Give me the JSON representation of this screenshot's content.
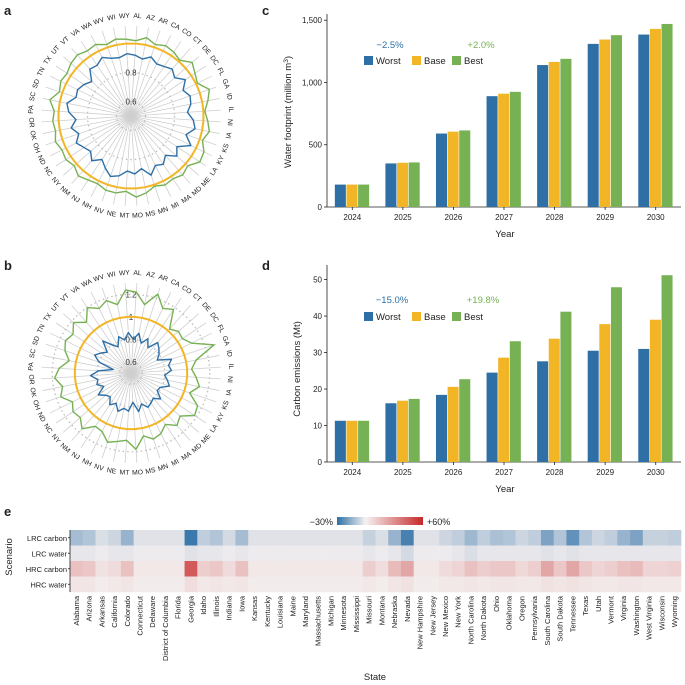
{
  "panel_labels": {
    "a": "a",
    "b": "b",
    "c": "c",
    "d": "d",
    "e": "e"
  },
  "colors": {
    "worst": "#2e6fa6",
    "base": "#f2b526",
    "best": "#76b153",
    "neg": "#2e6fa6",
    "pos": "#c6282a",
    "neutral": "#f4efef",
    "grid": "#c8c8c8"
  },
  "chart_data": [
    {
      "id": "a",
      "type": "radar",
      "states": [
        "AL",
        "AZ",
        "AR",
        "CA",
        "CO",
        "CT",
        "DE",
        "DC",
        "FL",
        "GA",
        "ID",
        "IL",
        "IN",
        "IA",
        "KS",
        "KY",
        "LA",
        "ME",
        "MD",
        "MA",
        "MI",
        "MN",
        "MS",
        "MO",
        "MT",
        "NE",
        "NV",
        "NH",
        "NJ",
        "NM",
        "NY",
        "NC",
        "ND",
        "OH",
        "OK",
        "OR",
        "PA",
        "SC",
        "SD",
        "TN",
        "TX",
        "UT",
        "VT",
        "VA",
        "WA",
        "WV",
        "WI",
        "WY"
      ],
      "ticks": [
        "0.6",
        "0.8"
      ],
      "rmin": 0.5,
      "rmax": 1.12,
      "series": [
        {
          "name": "Worst",
          "values": [
            0.92,
            0.9,
            0.93,
            0.9,
            0.91,
            0.93,
            0.9,
            0.95,
            0.9,
            0.93,
            0.92,
            0.89,
            0.93,
            0.95,
            0.9,
            0.96,
            0.88,
            0.92,
            0.86,
            0.9,
            0.88,
            0.93,
            0.87,
            0.9,
            0.88,
            0.92,
            0.94,
            0.9,
            0.86,
            0.91,
            0.87,
            0.89,
            0.92,
            0.88,
            0.92,
            0.88,
            0.93,
            0.95,
            0.9,
            0.91,
            0.89,
            0.86,
            0.93,
            0.92,
            0.95,
            0.92,
            0.91,
            0.93
          ]
        },
        {
          "name": "Base",
          "values": [
            1,
            1,
            1,
            1,
            1,
            1,
            1,
            1,
            1,
            1,
            1,
            1,
            1,
            1,
            1,
            1,
            1,
            1,
            1,
            1,
            1,
            1,
            1,
            1,
            1,
            1,
            1,
            1,
            1,
            1,
            1,
            1,
            1,
            1,
            1,
            1,
            1,
            1,
            1,
            1,
            1,
            1,
            1,
            1,
            1,
            1,
            1,
            1
          ]
        },
        {
          "name": "Best",
          "values": [
            1.02,
            1.05,
            1.02,
            1.04,
            1.03,
            1.01,
            1.06,
            1.03,
            1.01,
            1.07,
            1.04,
            1.01,
            1.03,
            1.05,
            1.02,
            1.06,
            1.07,
            1.02,
            1.04,
            1.02,
            1.03,
            1.01,
            1.04,
            1.06,
            1.02,
            1.04,
            1.04,
            1.02,
            1.03,
            1.05,
            1.02,
            1.04,
            1.03,
            1.05,
            1.03,
            1.04,
            1.03,
            1.07,
            1.02,
            1.04,
            1.03,
            1.05,
            1.06,
            1.04,
            1.05,
            1.02,
            1.04,
            1.03
          ]
        }
      ]
    },
    {
      "id": "b",
      "type": "radar",
      "states": [
        "AL",
        "AZ",
        "AR",
        "CA",
        "CO",
        "CT",
        "DE",
        "DC",
        "FL",
        "GA",
        "ID",
        "IL",
        "IN",
        "IA",
        "KS",
        "KY",
        "LA",
        "ME",
        "MD",
        "MA",
        "MI",
        "MN",
        "MS",
        "MO",
        "MT",
        "NE",
        "NV",
        "NH",
        "NJ",
        "NM",
        "NY",
        "NC",
        "ND",
        "OH",
        "OK",
        "OR",
        "PA",
        "SC",
        "SD",
        "TN",
        "TX",
        "UT",
        "VT",
        "VA",
        "WA",
        "WV",
        "WI",
        "WY"
      ],
      "ticks": [
        "0.6",
        "0.8",
        "1",
        "1.2"
      ],
      "rmin": 0.5,
      "rmax": 1.3,
      "series": [
        {
          "name": "Worst",
          "values": [
            0.8,
            0.86,
            0.78,
            0.84,
            0.77,
            0.86,
            0.83,
            0.8,
            0.76,
            0.88,
            0.84,
            0.86,
            0.8,
            0.83,
            0.86,
            0.79,
            0.78,
            0.85,
            0.8,
            0.82,
            0.84,
            0.79,
            0.85,
            0.76,
            0.84,
            0.82,
            0.86,
            0.8,
            0.84,
            0.78,
            0.8,
            0.85,
            0.77,
            0.82,
            0.8,
            0.86,
            0.79,
            0.66,
            0.8,
            0.86,
            0.82,
            0.78,
            0.88,
            0.8,
            0.76,
            0.84,
            0.8,
            0.86
          ]
        },
        {
          "name": "Base",
          "values": [
            1,
            1,
            1,
            1,
            1,
            1,
            1,
            1,
            1,
            1,
            1,
            1,
            1,
            1,
            1,
            1,
            1,
            1,
            1,
            1,
            1,
            1,
            1,
            1,
            1,
            1,
            1,
            1,
            1,
            1,
            1,
            1,
            1,
            1,
            1,
            1,
            1,
            1,
            1,
            1,
            1,
            1,
            1,
            1,
            1,
            1,
            1,
            1
          ]
        },
        {
          "name": "Best",
          "values": [
            1.22,
            1.12,
            1.24,
            1.14,
            1.18,
            1.02,
            1.06,
            1.05,
            1.1,
            1.28,
            1.09,
            1.04,
            1.08,
            1.12,
            1.05,
            1.16,
            1.18,
            1.08,
            1.12,
            1.05,
            1.1,
            1.12,
            1.07,
            1.18,
            1.1,
            1.12,
            1.15,
            1.08,
            1.07,
            1.16,
            1.1,
            1.12,
            1.08,
            1.16,
            1.12,
            1.18,
            1.14,
            1.06,
            1.12,
            1.15,
            1.12,
            1.18,
            1.1,
            1.2,
            1.14,
            1.18,
            1.12,
            1.24
          ]
        }
      ]
    },
    {
      "id": "c",
      "type": "bar",
      "categories": [
        "2024",
        "2025",
        "2026",
        "2027",
        "2028",
        "2029",
        "2030"
      ],
      "series": [
        {
          "name": "Worst",
          "values": [
            180,
            350,
            590,
            890,
            1140,
            1310,
            1385
          ]
        },
        {
          "name": "Base",
          "values": [
            180,
            355,
            605,
            910,
            1165,
            1345,
            1430
          ]
        },
        {
          "name": "Best",
          "values": [
            180,
            358,
            615,
            925,
            1190,
            1380,
            1470
          ]
        }
      ],
      "xlabel": "Year",
      "ylabel": "Water footprint (million m",
      "ylabel_sup": "3",
      "ylabel_end": ")",
      "ylim": [
        0,
        1550
      ],
      "yticks": [
        0,
        500,
        1000,
        1500
      ],
      "ytick_labels": [
        "0",
        "500",
        "1,000",
        "1,500"
      ],
      "annotations": [
        "−2.5%",
        "+2.0%"
      ]
    },
    {
      "id": "d",
      "type": "bar",
      "categories": [
        "2024",
        "2025",
        "2026",
        "2027",
        "2028",
        "2029",
        "2030"
      ],
      "series": [
        {
          "name": "Worst",
          "values": [
            11.3,
            16.1,
            18.4,
            24.5,
            27.6,
            30.5,
            31.0
          ]
        },
        {
          "name": "Base",
          "values": [
            11.3,
            16.8,
            20.6,
            28.6,
            33.8,
            37.8,
            39.0
          ]
        },
        {
          "name": "Best",
          "values": [
            11.3,
            17.3,
            22.7,
            33.1,
            41.2,
            47.9,
            51.2
          ]
        }
      ],
      "xlabel": "Year",
      "ylabel": "Carbon emissions (Mt)",
      "ylim": [
        0,
        54
      ],
      "yticks": [
        0,
        10,
        20,
        30,
        40,
        50
      ],
      "ytick_labels": [
        "0",
        "10",
        "20",
        "30",
        "40",
        "50"
      ],
      "annotations": [
        "−15.0%",
        "+19.8%"
      ]
    },
    {
      "id": "e",
      "type": "heatmap",
      "xlabel": "State",
      "ylabel": "Scenario",
      "rows": [
        "LRC carbon",
        "LRC water",
        "HRC carbon",
        "HRC water"
      ],
      "columns": [
        "Alabama",
        "Arizona",
        "Arkansas",
        "California",
        "Colorado",
        "Connecticut",
        "Delaware",
        "District of Columbia",
        "Florida",
        "Georgia",
        "Idaho",
        "Illinois",
        "Indiana",
        "Iowa",
        "Kansas",
        "Kentucky",
        "Louisiana",
        "Maine",
        "Maryland",
        "Massachusetts",
        "Michigan",
        "Minnesota",
        "Mississippi",
        "Missouri",
        "Montana",
        "Nebraska",
        "Nevada",
        "New Hampshire",
        "New Jersey",
        "New Mexico",
        "New York",
        "North Carolina",
        "North Dakota",
        "Ohio",
        "Oklahoma",
        "Oregon",
        "Pennsylvania",
        "South Carolina",
        "South Dakota",
        "Tennessee",
        "Texas",
        "Utah",
        "Vermont",
        "Virginia",
        "Washington",
        "West Virginia",
        "Wisconsin",
        "Wyoming"
      ],
      "colorbar_labels": [
        "−30%",
        "+60%"
      ],
      "vmin": -30,
      "vmax": 60,
      "values": [
        [
          -12,
          -10,
          -4,
          -6,
          -14,
          -3,
          -3,
          -3,
          -3,
          -28,
          -8,
          -10,
          -5,
          -12,
          -3,
          -3,
          -3,
          -3,
          -3,
          -3,
          -3,
          -3,
          -3,
          -7,
          -4,
          -14,
          -26,
          -3,
          -3,
          -6,
          -8,
          -13,
          -8,
          -11,
          -10,
          -6,
          -8,
          -18,
          -10,
          -22,
          -10,
          -6,
          -8,
          -14,
          -18,
          -7,
          -7,
          -8
        ],
        [
          -2,
          -2,
          -1,
          -2,
          -2,
          -1,
          -1,
          -1,
          -1,
          -3,
          -2,
          -2,
          -1,
          -2,
          -1,
          -1,
          -1,
          -1,
          -1,
          -1,
          -1,
          -1,
          -1,
          -2,
          -1,
          -2,
          -5,
          -1,
          -1,
          -1,
          -2,
          -4,
          -2,
          -2,
          -2,
          -2,
          -2,
          -3,
          -2,
          -3,
          -2,
          -2,
          -2,
          -2,
          -2,
          -2,
          -2,
          -2
        ],
        [
          14,
          12,
          4,
          6,
          14,
          2,
          2,
          2,
          2,
          45,
          10,
          12,
          6,
          14,
          2,
          2,
          2,
          2,
          2,
          2,
          2,
          2,
          2,
          10,
          5,
          16,
          22,
          2,
          2,
          6,
          8,
          14,
          10,
          12,
          12,
          7,
          10,
          22,
          12,
          22,
          12,
          8,
          10,
          14,
          16,
          8,
          8,
          9
        ],
        [
          3,
          3,
          1,
          2,
          3,
          1,
          1,
          1,
          1,
          5,
          2,
          3,
          2,
          3,
          1,
          1,
          1,
          1,
          1,
          1,
          1,
          1,
          1,
          2,
          1,
          3,
          4,
          1,
          1,
          2,
          2,
          3,
          2,
          3,
          3,
          2,
          2,
          4,
          3,
          4,
          3,
          2,
          2,
          3,
          3,
          2,
          2,
          2
        ]
      ]
    }
  ]
}
